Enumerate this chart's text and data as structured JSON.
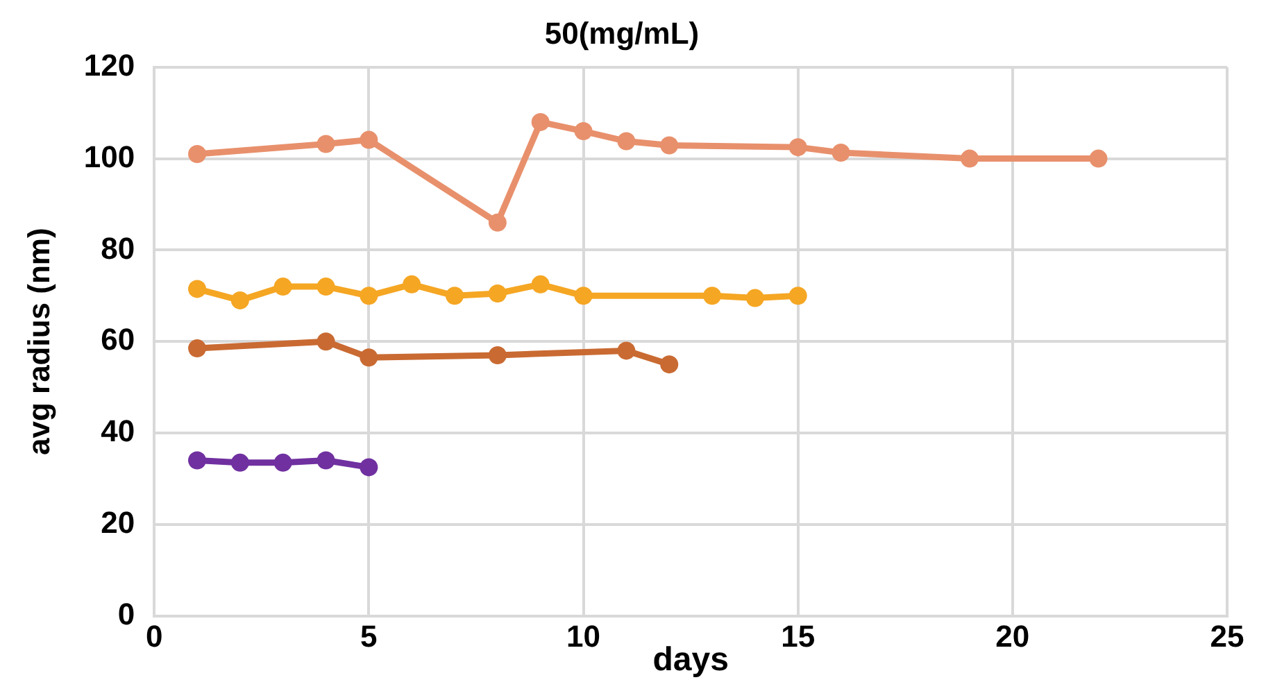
{
  "chart_data": {
    "type": "line",
    "title": "50(mg/mL)",
    "xlabel": "days",
    "ylabel": "avg radius (nm)",
    "xlim": [
      0,
      25
    ],
    "xticks": [
      0,
      5,
      10,
      15,
      20,
      25
    ],
    "ylim": [
      0,
      120
    ],
    "yticks": [
      0,
      20,
      40,
      60,
      80,
      100,
      120
    ],
    "grid": true,
    "legend": false,
    "marker": "circle",
    "line_style": "solid",
    "series": [
      {
        "color": "#e8906c",
        "x": [
          1,
          4,
          5,
          8,
          9,
          10,
          11,
          12,
          15,
          16,
          19,
          22
        ],
        "values": [
          101,
          103.2,
          104.1,
          86,
          108,
          106,
          103.8,
          102.9,
          102.5,
          101.3,
          100,
          100
        ]
      },
      {
        "color": "#f5a623",
        "x": [
          1,
          2,
          3,
          4,
          5,
          6,
          7,
          8,
          9,
          10,
          13,
          14,
          15
        ],
        "values": [
          71.5,
          69,
          72,
          72,
          70,
          72.5,
          70,
          70.5,
          72.5,
          70,
          70,
          69.5,
          70
        ]
      },
      {
        "color": "#c96a32",
        "x": [
          1,
          4,
          5,
          8,
          11,
          12
        ],
        "values": [
          58.5,
          60,
          56.5,
          57,
          58,
          55
        ]
      },
      {
        "color": "#7030a0",
        "x": [
          1,
          2,
          3,
          4,
          5
        ],
        "values": [
          34,
          33.5,
          33.5,
          34,
          32.5
        ]
      }
    ]
  }
}
